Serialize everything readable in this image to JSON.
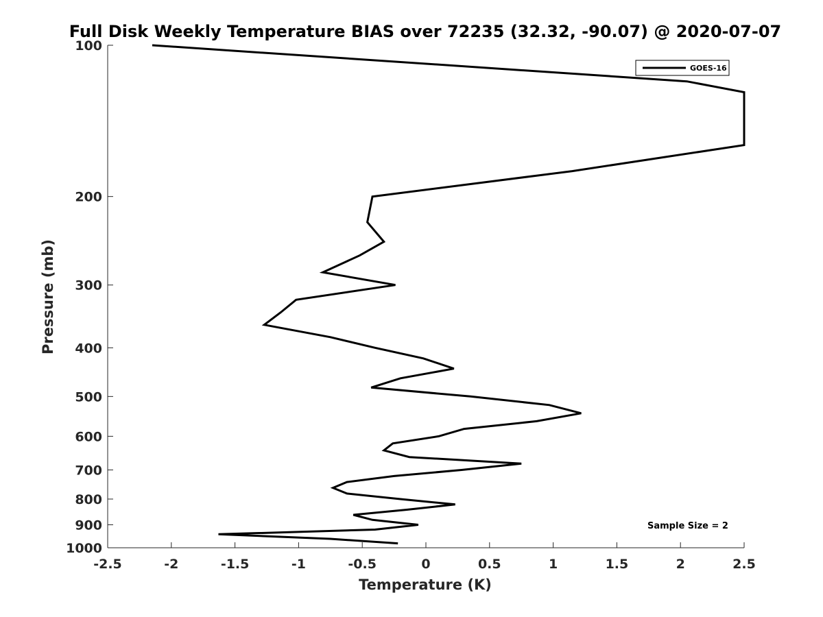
{
  "chart_data": {
    "type": "line",
    "title": "Full Disk Weekly Temperature BIAS over 72235 (32.32, -90.07) @ 2020-07-07",
    "xlabel": "Temperature (K)",
    "ylabel": "Pressure (mb)",
    "xlim": [
      -2.5,
      2.5
    ],
    "ylim": [
      1000,
      100
    ],
    "yscale": "log",
    "y_reversed": true,
    "grid": false,
    "legend_position": "top-right",
    "x_ticks": [
      -2.5,
      -2,
      -1.5,
      -1,
      -0.5,
      0,
      0.5,
      1,
      1.5,
      2,
      2.5
    ],
    "x_tick_labels": [
      "-2.5",
      "-2",
      "-1.5",
      "-1",
      "-0.5",
      "0",
      "0.5",
      "1",
      "1.5",
      "2",
      "2.5"
    ],
    "y_ticks": [
      100,
      200,
      300,
      400,
      500,
      600,
      700,
      800,
      900,
      1000
    ],
    "y_tick_labels": [
      "100",
      "200",
      "300",
      "400",
      "500",
      "600",
      "700",
      "800",
      "900",
      "1000"
    ],
    "series": [
      {
        "name": "GOES-16",
        "color": "#000000",
        "points": [
          [
            -2.15,
            100
          ],
          [
            2.05,
            118
          ],
          [
            2.5,
            124
          ],
          [
            2.5,
            158
          ],
          [
            1.15,
            178
          ],
          [
            -0.42,
            200
          ],
          [
            -0.46,
            225
          ],
          [
            -0.33,
            246
          ],
          [
            -0.52,
            262
          ],
          [
            -0.81,
            283
          ],
          [
            -0.24,
            300
          ],
          [
            -1.02,
            321
          ],
          [
            -1.14,
            340
          ],
          [
            -1.27,
            360
          ],
          [
            -0.75,
            381
          ],
          [
            -0.4,
            400
          ],
          [
            -0.02,
            420
          ],
          [
            0.22,
            440
          ],
          [
            -0.2,
            460
          ],
          [
            -0.43,
            480
          ],
          [
            0.35,
            500
          ],
          [
            0.97,
            520
          ],
          [
            1.22,
            540
          ],
          [
            0.87,
            560
          ],
          [
            0.3,
            580
          ],
          [
            0.1,
            600
          ],
          [
            -0.26,
            620
          ],
          [
            -0.33,
            640
          ],
          [
            -0.13,
            660
          ],
          [
            0.75,
            680
          ],
          [
            0.28,
            700
          ],
          [
            -0.25,
            720
          ],
          [
            -0.62,
            740
          ],
          [
            -0.73,
            760
          ],
          [
            -0.62,
            780
          ],
          [
            -0.2,
            800
          ],
          [
            0.23,
            820
          ],
          [
            -0.15,
            840
          ],
          [
            -0.57,
            860
          ],
          [
            -0.42,
            880
          ],
          [
            -0.06,
            900
          ],
          [
            -0.4,
            920
          ],
          [
            -1.63,
            940
          ],
          [
            -0.75,
            960
          ],
          [
            -0.22,
            980
          ]
        ]
      }
    ],
    "annotations": [
      "Sample Size = 2"
    ]
  }
}
